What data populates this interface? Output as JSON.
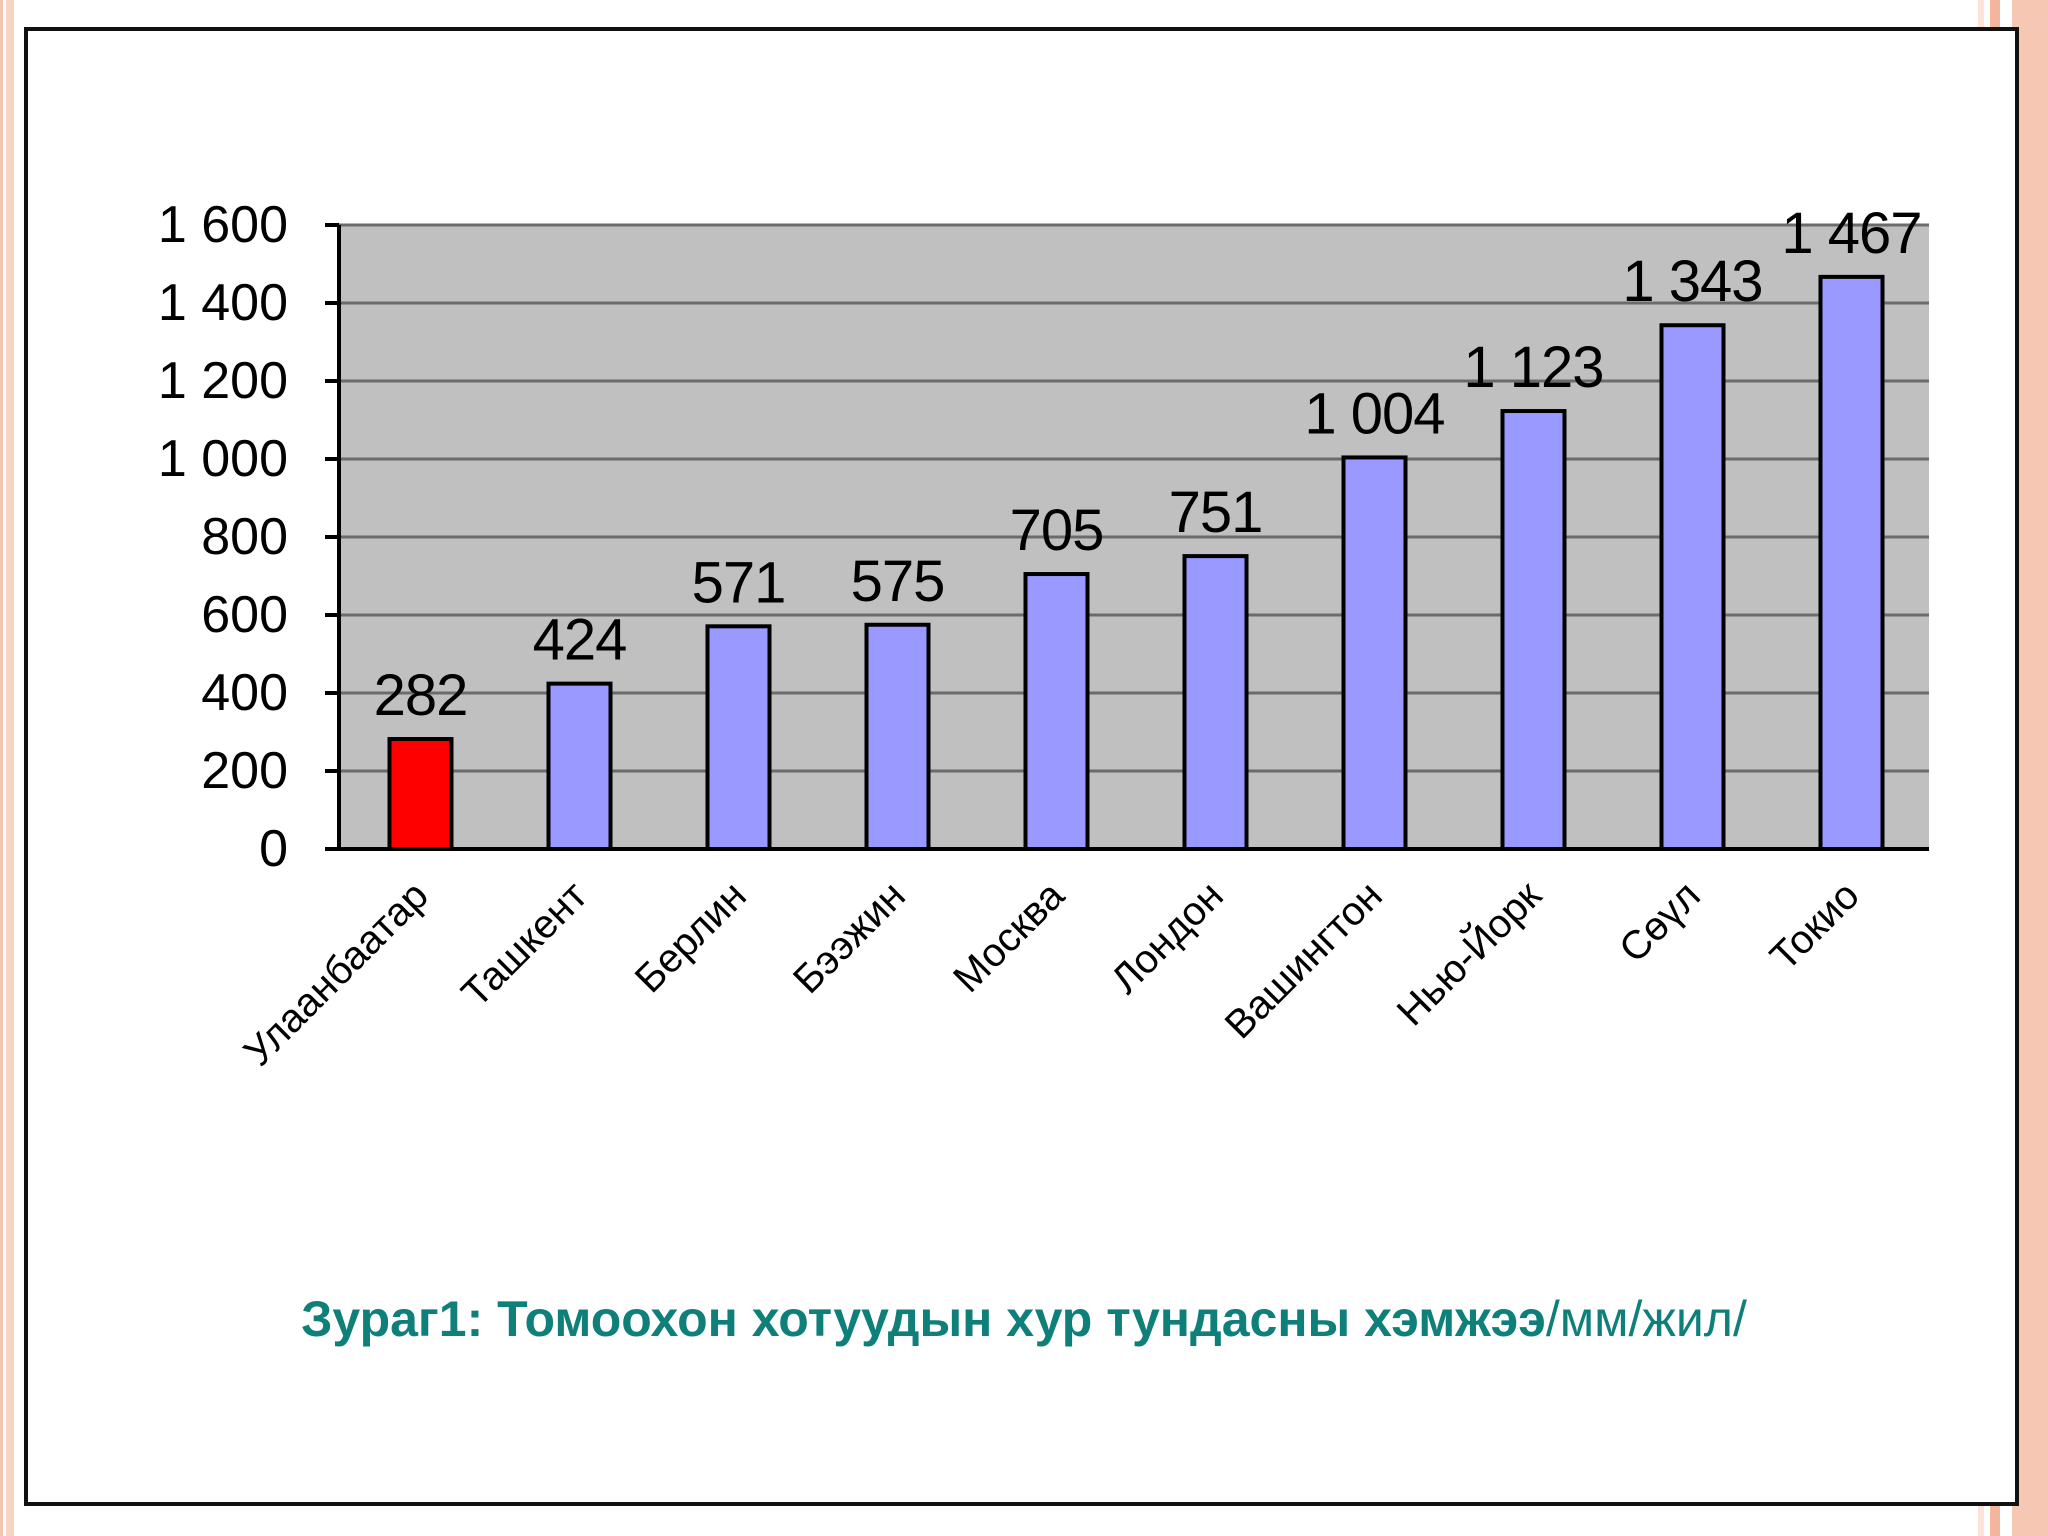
{
  "colors": {
    "plot_background": "#c0c0c0",
    "bar_default": "#9999ff",
    "bar_highlight": "#ff0000",
    "caption": "#0f7f7a",
    "gridline": "#6b6b6b"
  },
  "chart_data": {
    "type": "bar",
    "categories": [
      "Улаанбаатар",
      "Ташкент",
      "Берлин",
      "Бээжин",
      "Москва",
      "Лондон",
      "Вашингтон",
      "Нью-Йорк",
      "Сөүл",
      "Токио"
    ],
    "values": [
      282,
      424,
      571,
      575,
      705,
      751,
      1004,
      1123,
      1343,
      1467
    ],
    "data_labels": [
      "282",
      "424",
      "571",
      "575",
      "705",
      "751",
      "1 004",
      "1 123",
      "1 343",
      "1 467"
    ],
    "highlight_index": 0,
    "ylim": [
      0,
      1600
    ],
    "yticks": [
      0,
      200,
      400,
      600,
      800,
      1000,
      1200,
      1400,
      1600
    ],
    "ytick_labels": [
      "0",
      "200",
      "400",
      "600",
      "800",
      "1 000",
      "1 200",
      "1 400",
      "1 600"
    ],
    "grid": true,
    "legend": "none",
    "xlabel": "",
    "ylabel": "",
    "title": ""
  },
  "caption": {
    "main": "Зураг1: Томоохон хотуудын хур тундасны хэмжээ",
    "unit": "/мм/жил/"
  }
}
